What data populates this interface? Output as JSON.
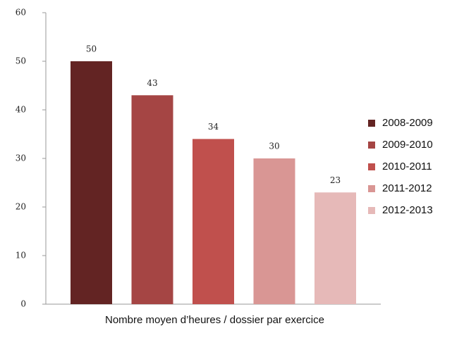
{
  "chart_data": {
    "type": "bar",
    "categories": [
      "Nombre moyen d’heures / dossier par exercice"
    ],
    "series": [
      {
        "name": "2008-2009",
        "color": "#632423",
        "values": [
          50
        ]
      },
      {
        "name": "2009-2010",
        "color": "#a54544",
        "values": [
          43
        ]
      },
      {
        "name": "2010-2011",
        "color": "#c0504d",
        "values": [
          34
        ]
      },
      {
        "name": "2011-2012",
        "color": "#d99694",
        "values": [
          30
        ]
      },
      {
        "name": "2012-2013",
        "color": "#e6b9b8",
        "values": [
          23
        ]
      }
    ],
    "ylim": [
      0,
      60
    ],
    "yticks": [
      0,
      10,
      20,
      30,
      40,
      50,
      60
    ],
    "legend": "right"
  }
}
